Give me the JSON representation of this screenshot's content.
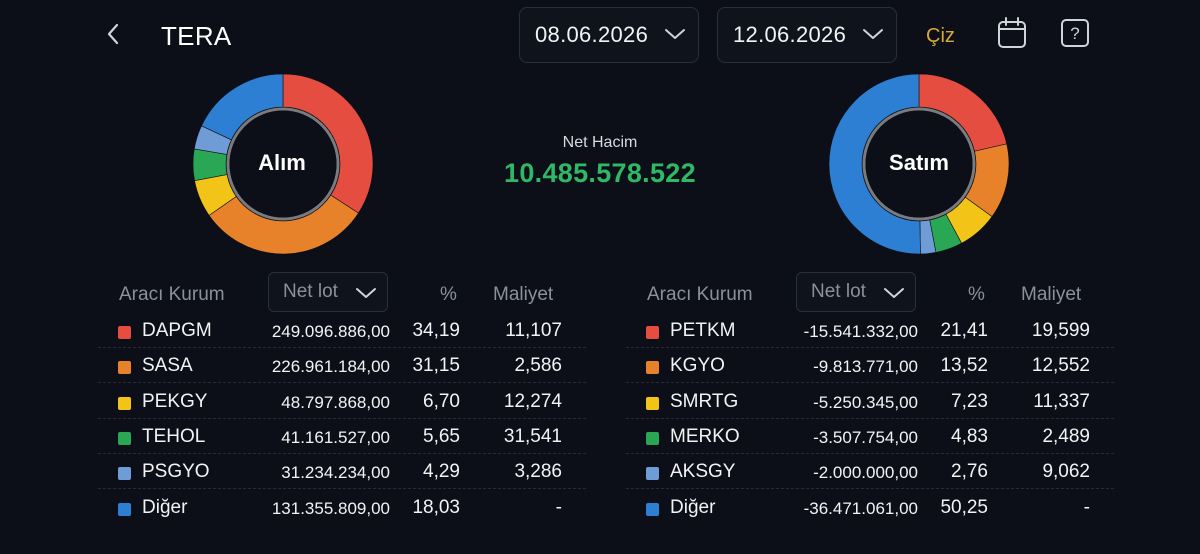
{
  "header": {
    "title": "TERA",
    "start_date": "08.06.2026",
    "end_date": "12.06.2026",
    "draw_label": "Çiz",
    "accent_color": "#d8a93a"
  },
  "summary": {
    "buy_label": "Alım",
    "sell_label": "Satım",
    "net_volume_label": "Net Hacim",
    "net_volume_value": "10.485.578.522",
    "net_volume_color": "#2fb866"
  },
  "columns": {
    "broker": "Aracı Kurum",
    "net_lot": "Net lot",
    "percent": "%",
    "cost": "Maliyet"
  },
  "colors": [
    "#e44d3f",
    "#e8822a",
    "#f2c417",
    "#2aa755",
    "#6f9bd6",
    "#2d7fd3"
  ],
  "buy": {
    "rows": [
      {
        "name": "DAPGM",
        "lot": "249.096.886,00",
        "pct": "34,19",
        "cost": "11,107",
        "share": 34.19
      },
      {
        "name": "SASA",
        "lot": "226.961.184,00",
        "pct": "31,15",
        "cost": "2,586",
        "share": 31.15
      },
      {
        "name": "PEKGY",
        "lot": "48.797.868,00",
        "pct": "6,70",
        "cost": "12,274",
        "share": 6.7
      },
      {
        "name": "TEHOL",
        "lot": "41.161.527,00",
        "pct": "5,65",
        "cost": "31,541",
        "share": 5.65
      },
      {
        "name": "PSGYO",
        "lot": "31.234.234,00",
        "pct": "4,29",
        "cost": "3,286",
        "share": 4.29
      },
      {
        "name": "Diğer",
        "lot": "131.355.809,00",
        "pct": "18,03",
        "cost": "-",
        "share": 18.03
      }
    ]
  },
  "sell": {
    "rows": [
      {
        "name": "PETKM",
        "lot": "-15.541.332,00",
        "pct": "21,41",
        "cost": "19,599",
        "share": 21.41
      },
      {
        "name": "KGYO",
        "lot": "-9.813.771,00",
        "pct": "13,52",
        "cost": "12,552",
        "share": 13.52
      },
      {
        "name": "SMRTG",
        "lot": "-5.250.345,00",
        "pct": "7,23",
        "cost": "11,337",
        "share": 7.23
      },
      {
        "name": "MERKO",
        "lot": "-3.507.754,00",
        "pct": "4,83",
        "cost": "2,489",
        "share": 4.83
      },
      {
        "name": "AKSGY",
        "lot": "-2.000.000,00",
        "pct": "2,76",
        "cost": "9,062",
        "share": 2.76
      },
      {
        "name": "Diğer",
        "lot": "-36.471.061,00",
        "pct": "50,25",
        "cost": "-",
        "share": 50.25
      }
    ]
  }
}
